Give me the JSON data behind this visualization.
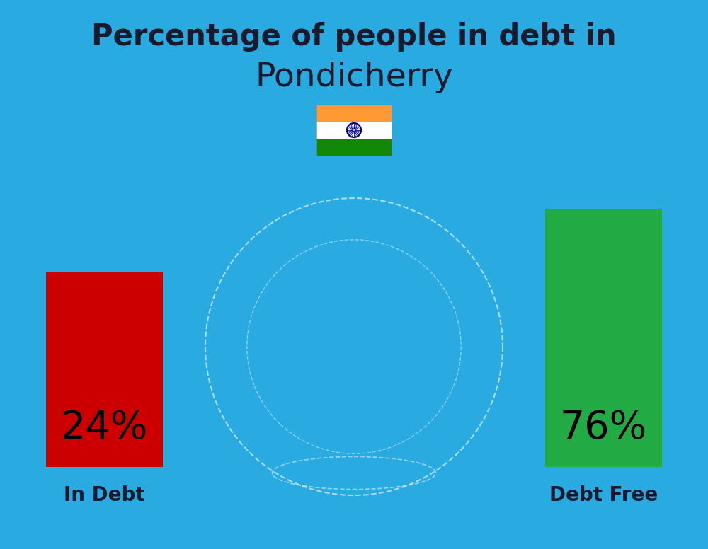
{
  "title_line1": "Percentage of people in debt in",
  "title_line2": "Pondicherry",
  "background_color": "#29ABE2",
  "bar_in_debt_value": 24,
  "bar_debt_free_value": 76,
  "bar_in_debt_label": "In Debt",
  "bar_debt_free_label": "Debt Free",
  "bar_in_debt_color": "#CC0000",
  "bar_debt_free_color": "#22AA44",
  "bar_in_debt_pct": "24%",
  "bar_debt_free_pct": "76%",
  "title_fontsize": 30,
  "subtitle_fontsize": 34,
  "pct_fontsize": 40,
  "label_fontsize": 20,
  "title_color": "#1a1a2e",
  "label_color": "#1a1a2e",
  "pct_color": "#000000",
  "fig_width": 10.0,
  "fig_height": 7.76,
  "flag_saffron": "#FF9933",
  "flag_white": "#FFFFFF",
  "flag_green": "#138808",
  "flag_navy": "#000080"
}
